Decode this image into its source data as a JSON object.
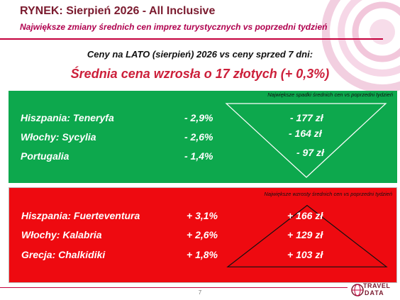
{
  "header": {
    "title": "RYNEK: Sierpień 2026 - All Inclusive",
    "subtitle": "Największe zmiany średnich cen imprez turystycznych vs poprzedni tydzień"
  },
  "summary": {
    "comparison": "Ceny na LATO (sierpień) 2026 vs ceny sprzed 7 dni:",
    "headline": "Średnia cena wzrosła o 17 złotych (+ 0,3%)"
  },
  "decreases": {
    "note": "Największe spadki średnich cen vs poprzedni tydzień",
    "rows": [
      {
        "destination": "Hiszpania: Teneryfa",
        "percent": "- 2,9%",
        "amount": "- 177 zł"
      },
      {
        "destination": "Włochy: Sycylia",
        "percent": "- 2,6%",
        "amount": "- 164 zł"
      },
      {
        "destination": "Portugalia",
        "percent": "- 1,4%",
        "amount": "- 97 zł"
      }
    ],
    "color": "#0da84d"
  },
  "increases": {
    "note": "Największe wzrosty średnich cen vs poprzedni tydzień",
    "rows": [
      {
        "destination": "Hiszpania: Fuerteventura",
        "percent": "+ 3,1%",
        "amount": "+ 166 zł"
      },
      {
        "destination": "Włochy: Kalabria",
        "percent": "+ 2,6%",
        "amount": "+ 129 zł"
      },
      {
        "destination": "Grecja: Chalkidiki",
        "percent": "+ 1,8%",
        "amount": "+ 103 zł"
      }
    ],
    "color": "#ee0a10"
  },
  "footer": {
    "page_number": "7",
    "logo_line1": "TRAVEL",
    "logo_line2": "DATA"
  }
}
